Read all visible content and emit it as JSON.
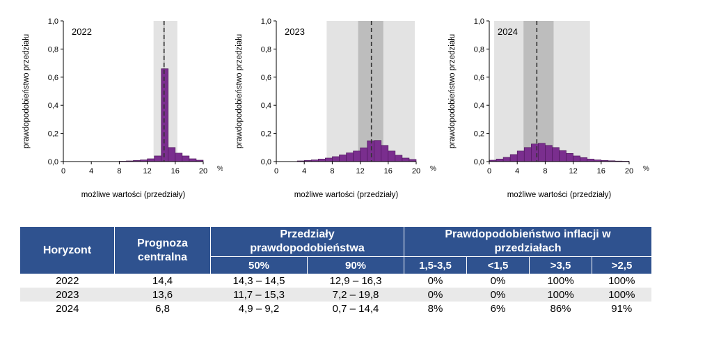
{
  "chart_data": [
    {
      "type": "bar",
      "year_label": "2022",
      "ylabel": "prawdopodobieństwo przedziału",
      "xlabel": "możliwe wartości (przedziały)",
      "x_unit": "%",
      "xlim": [
        0,
        20
      ],
      "ylim": [
        0,
        1.0
      ],
      "x_ticks": [
        "0",
        "4",
        "8",
        "12",
        "16",
        "20"
      ],
      "y_ticks": [
        "0,0",
        "0,2",
        "0,4",
        "0,6",
        "0,8",
        "1,0"
      ],
      "bin_width": 1,
      "bin_starts": [
        0,
        1,
        2,
        3,
        4,
        5,
        6,
        7,
        8,
        9,
        10,
        11,
        12,
        13,
        14,
        15,
        16,
        17,
        18,
        19
      ],
      "values": [
        0,
        0,
        0,
        0,
        0,
        0,
        0,
        0,
        0.003,
        0.005,
        0.008,
        0.012,
        0.02,
        0.04,
        0.66,
        0.1,
        0.06,
        0.04,
        0.02,
        0.01
      ],
      "central": 14.4,
      "band50": [
        14.3,
        14.5
      ],
      "band90": [
        12.9,
        16.3
      ]
    },
    {
      "type": "bar",
      "year_label": "2023",
      "ylabel": "prawdopodobieństwo przedziału",
      "xlabel": "możliwe wartości (przedziały)",
      "x_unit": "%",
      "xlim": [
        0,
        20
      ],
      "ylim": [
        0,
        1.0
      ],
      "x_ticks": [
        "0",
        "4",
        "8",
        "12",
        "16",
        "20"
      ],
      "y_ticks": [
        "0,0",
        "0,2",
        "0,4",
        "0,6",
        "0,8",
        "1,0"
      ],
      "bin_width": 1,
      "bin_starts": [
        0,
        1,
        2,
        3,
        4,
        5,
        6,
        7,
        8,
        9,
        10,
        11,
        12,
        13,
        14,
        15,
        16,
        17,
        18,
        19
      ],
      "values": [
        0,
        0,
        0,
        0.005,
        0.008,
        0.012,
        0.018,
        0.025,
        0.035,
        0.048,
        0.062,
        0.075,
        0.098,
        0.148,
        0.15,
        0.115,
        0.075,
        0.045,
        0.025,
        0.015
      ],
      "central": 13.6,
      "band50": [
        11.7,
        15.3
      ],
      "band90": [
        7.2,
        19.8
      ]
    },
    {
      "type": "bar",
      "year_label": "2024",
      "ylabel": "prawdopodobieństwo przedziału",
      "xlabel": "możliwe wartości (przedziały)",
      "x_unit": "%",
      "xlim": [
        0,
        20
      ],
      "ylim": [
        0,
        1.0
      ],
      "x_ticks": [
        "0",
        "4",
        "8",
        "12",
        "16",
        "20"
      ],
      "y_ticks": [
        "0,0",
        "0,2",
        "0,4",
        "0,6",
        "0,8",
        "1,0"
      ],
      "bin_width": 1,
      "bin_starts": [
        0,
        1,
        2,
        3,
        4,
        5,
        6,
        7,
        8,
        9,
        10,
        11,
        12,
        13,
        14,
        15,
        16,
        17,
        18,
        19
      ],
      "values": [
        0.01,
        0.018,
        0.03,
        0.05,
        0.075,
        0.1,
        0.125,
        0.13,
        0.115,
        0.1,
        0.078,
        0.058,
        0.04,
        0.028,
        0.018,
        0.012,
        0.008,
        0.006,
        0.004,
        0.003
      ],
      "central": 6.8,
      "band50": [
        4.9,
        9.2
      ],
      "band90": [
        0.7,
        14.4
      ]
    }
  ],
  "table": {
    "h_horyzont": "Horyzont",
    "h_prognoza": "Prognoza centralna",
    "h_przedzialy": "Przedziały prawdopodobieństwa",
    "h_prawdop": "Prawdopodobieństwo inflacji w przedziałach",
    "sub": [
      "50%",
      "90%",
      "1,5-3,5",
      "<1,5",
      ">3,5",
      ">2,5"
    ],
    "rows": [
      {
        "year": "2022",
        "central": "14,4",
        "p50": "14,3 – 14,5",
        "p90": "12,9 – 16,3",
        "a": "0%",
        "b": "0%",
        "c": "100%",
        "d": "100%"
      },
      {
        "year": "2023",
        "central": "13,6",
        "p50": "11,7 – 15,3",
        "p90": "7,2 – 19,8",
        "a": "0%",
        "b": "0%",
        "c": "100%",
        "d": "100%"
      },
      {
        "year": "2024",
        "central": "6,8",
        "p50": "4,9 – 9,2",
        "p90": "0,7 – 14,4",
        "a": "8%",
        "b": "6%",
        "c": "86%",
        "d": "91%"
      }
    ]
  },
  "colors": {
    "bar": "#7a2e8e",
    "band90": "#e3e3e3",
    "band50": "#bdbdbd",
    "header": "#2f528f",
    "row_alt": "#e9e9e9"
  }
}
